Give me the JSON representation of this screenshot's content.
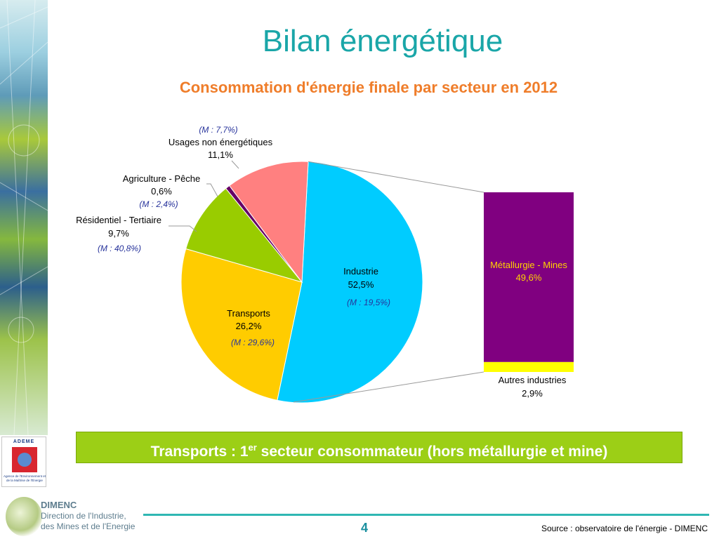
{
  "title": "Bilan énergétique",
  "chart_data": {
    "type": "pie",
    "title": "Consommation d'énergie finale par secteur en 2012",
    "slices": [
      {
        "label": "Industrie",
        "value": 52.5,
        "display": "52,5%",
        "note": "(M : 19,5%)",
        "color": "#00ccff"
      },
      {
        "label": "Transports",
        "value": 26.2,
        "display": "26,2%",
        "note": "(M : 29,6%)",
        "color": "#ffcc00"
      },
      {
        "label": "Résidentiel - Tertiaire",
        "value": 9.7,
        "display": "9,7%",
        "note": "(M : 40,8%)",
        "color": "#99cc00"
      },
      {
        "label": "Agriculture - Pêche",
        "value": 0.6,
        "display": "0,6%",
        "note": "(M : 2,4%)",
        "color": "#660066"
      },
      {
        "label": "Usages non énergétiques",
        "value": 11.1,
        "display": "11,1%",
        "note": "(M : 7,7%)",
        "color": "#ff8080"
      }
    ],
    "breakdown": {
      "of": "Industrie",
      "type": "stacked-bar",
      "segments": [
        {
          "label": "Métallurgie - Mines",
          "value": 49.6,
          "display": "49,6%",
          "color": "#800080"
        },
        {
          "label": "Autres industries",
          "value": 2.9,
          "display": "2,9%",
          "color": "#ffff00"
        }
      ]
    }
  },
  "banner": {
    "prefix": "Transports : 1",
    "sup": "er",
    "suffix": " secteur consommateur (hors métallurgie et mine)"
  },
  "logos": {
    "ademe_name": "ADEME",
    "ademe_tagline": "Agence de l'Environnement et de la Maîtrise de l'Énergie",
    "dimenc_name": "DIMENC",
    "dimenc_line1": "Direction de l'Industrie,",
    "dimenc_line2": "des Mines et de l'Energie"
  },
  "footer": {
    "page_number": "4",
    "source": "Source : observatoire de l'énergie - DIMENC"
  }
}
